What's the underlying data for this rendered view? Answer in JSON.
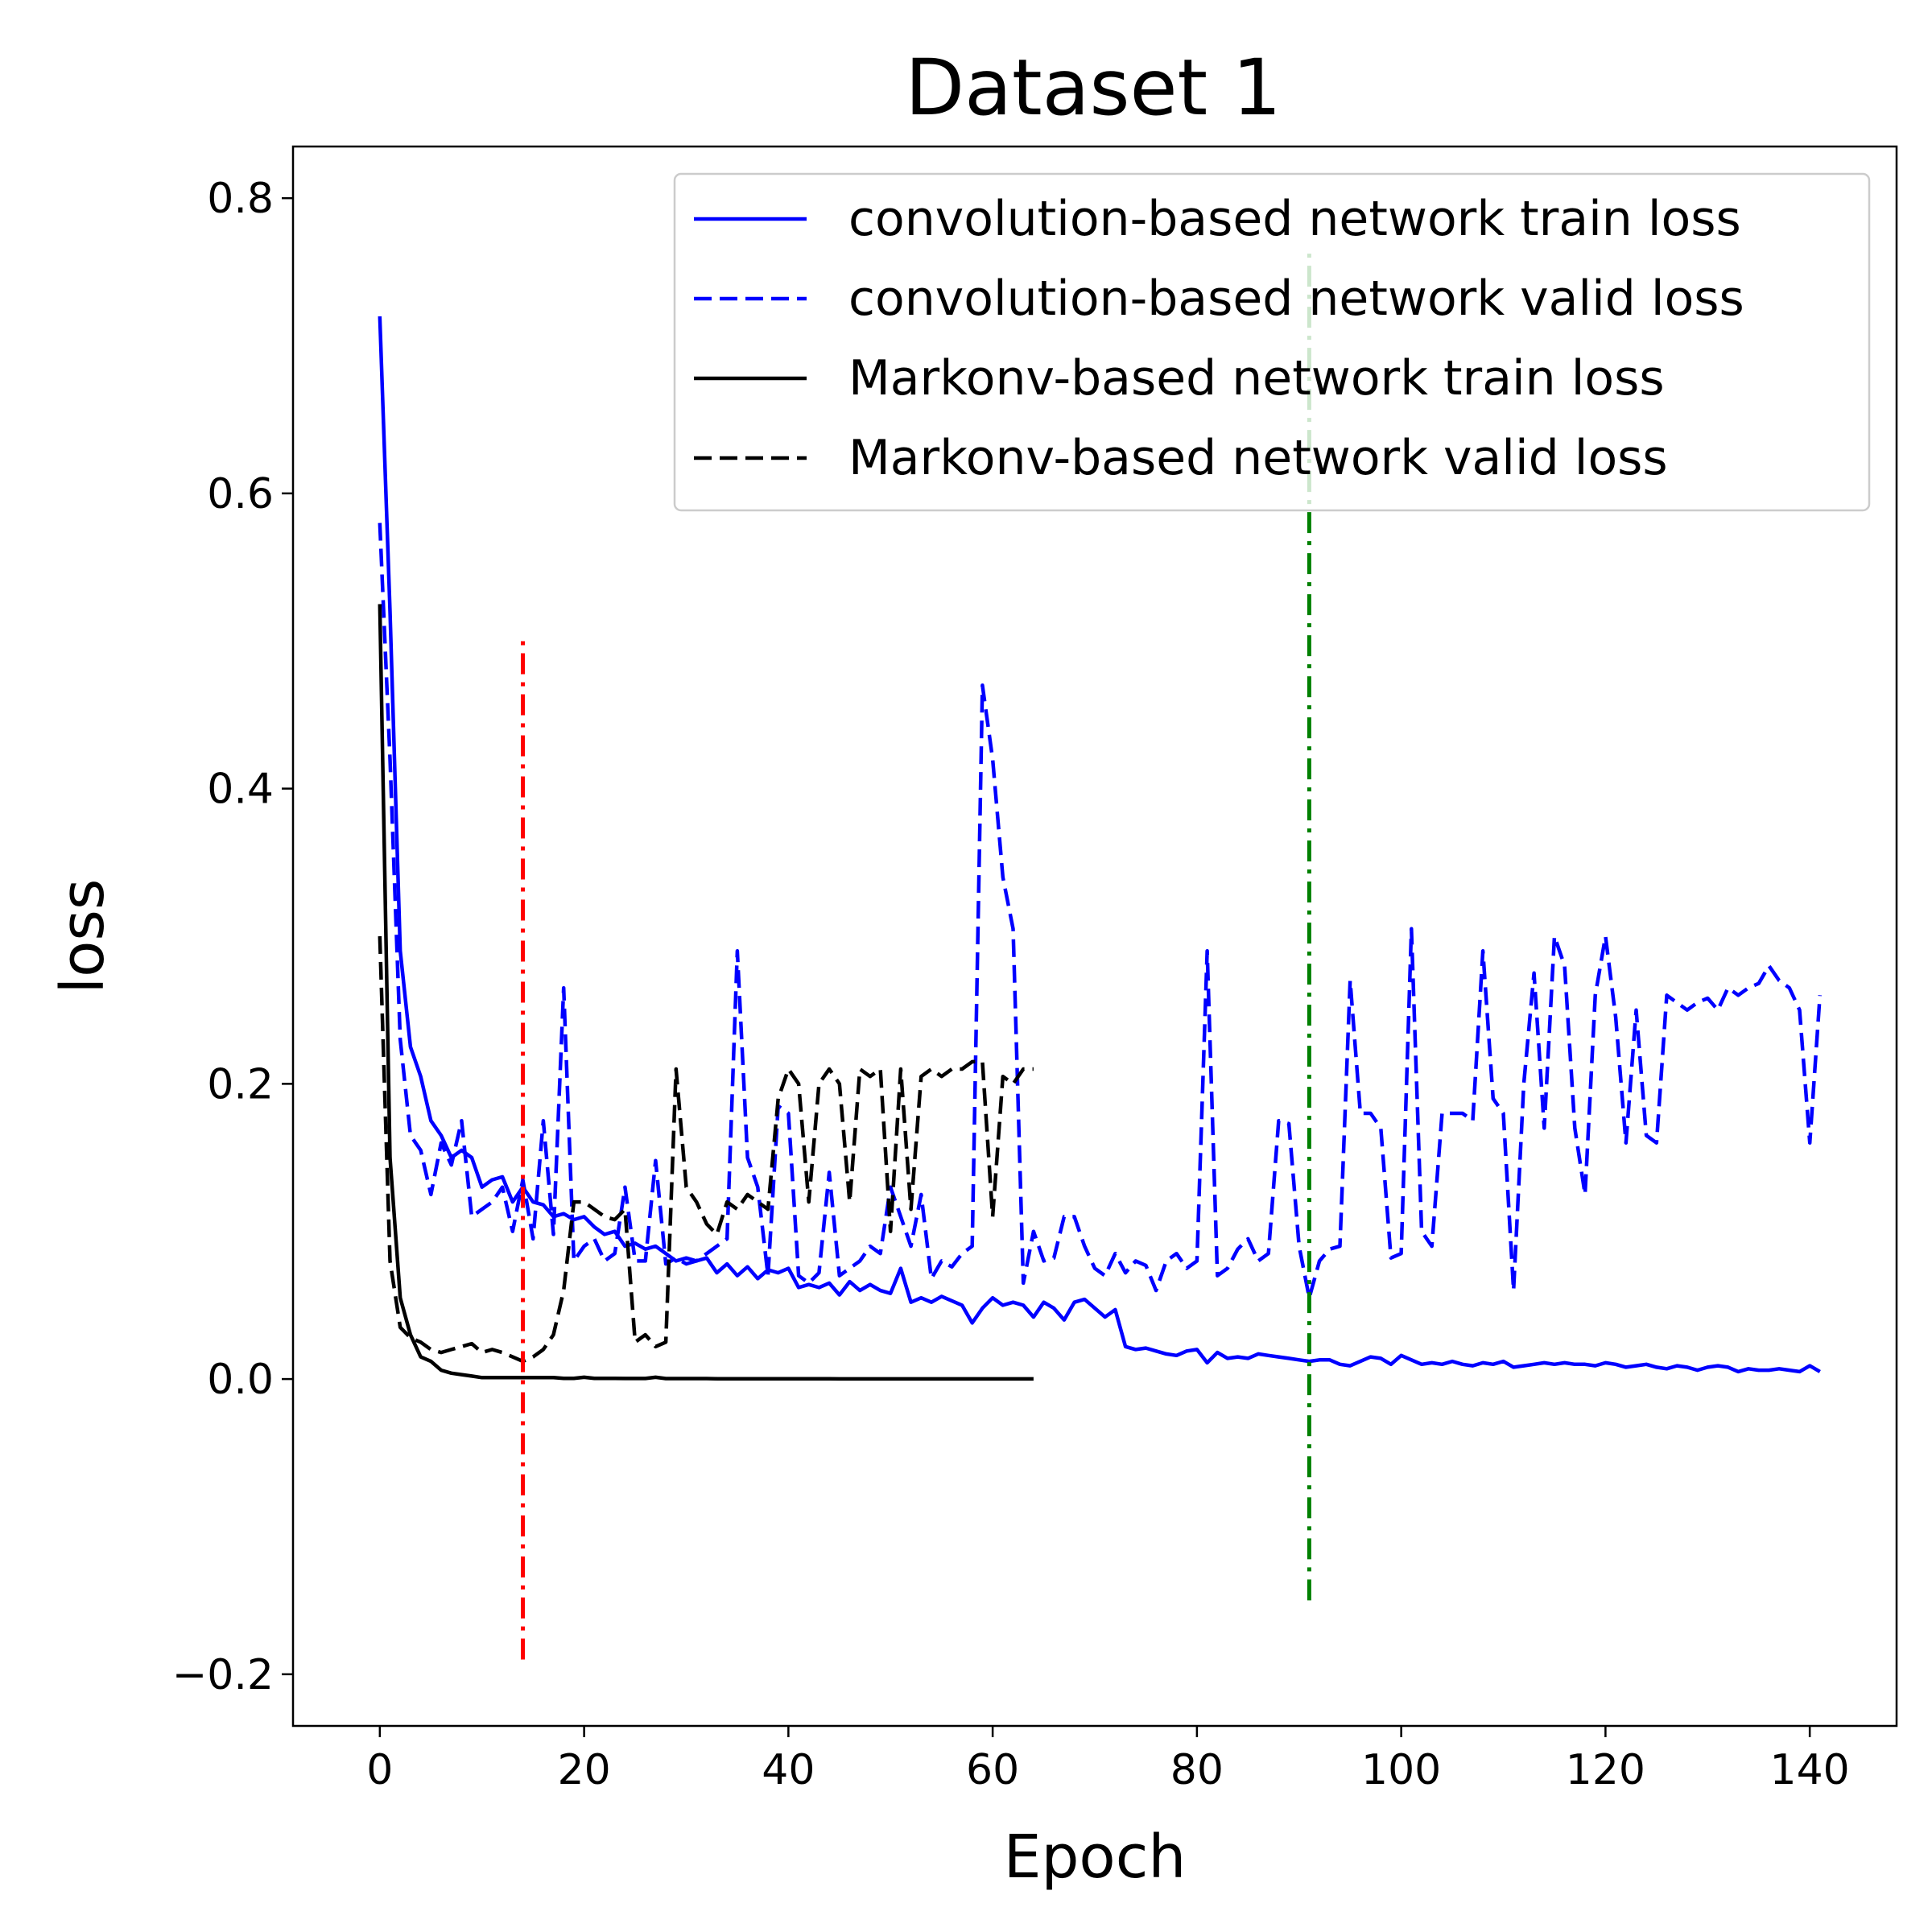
{
  "chart_data": {
    "type": "line",
    "title": "Dataset 1",
    "xlabel": "Epoch",
    "ylabel": "loss",
    "xlim": [
      -8.5,
      148.5
    ],
    "ylim": [
      -0.235,
      0.835
    ],
    "xticks": [
      0,
      20,
      40,
      60,
      80,
      100,
      120,
      140
    ],
    "xtick_labels": [
      "0",
      "20",
      "40",
      "60",
      "80",
      "100",
      "120",
      "140"
    ],
    "yticks": [
      -0.2,
      0.0,
      0.2,
      0.4,
      0.6,
      0.8
    ],
    "ytick_labels": [
      "−0.2",
      "0.0",
      "0.2",
      "0.4",
      "0.6",
      "0.8"
    ],
    "grid": false,
    "legend_position": "top-right",
    "series": [
      {
        "name": "convolution-based network train loss",
        "color": "#0000ff",
        "style": "solid",
        "x": [
          0,
          1,
          2,
          3,
          4,
          5,
          6,
          7,
          8,
          9,
          10,
          11,
          12,
          13,
          14,
          15,
          16,
          17,
          18,
          19,
          20,
          21,
          22,
          23,
          24,
          25,
          26,
          27,
          28,
          29,
          30,
          31,
          32,
          33,
          34,
          35,
          36,
          37,
          38,
          39,
          40,
          41,
          42,
          43,
          44,
          45,
          46,
          47,
          48,
          49,
          50,
          51,
          52,
          53,
          54,
          55,
          56,
          57,
          58,
          59,
          60,
          61,
          62,
          63,
          64,
          65,
          66,
          67,
          68,
          69,
          70,
          71,
          72,
          73,
          74,
          75,
          76,
          77,
          78,
          79,
          80,
          81,
          82,
          83,
          84,
          85,
          86,
          87,
          88,
          89,
          90,
          91,
          92,
          93,
          94,
          95,
          96,
          97,
          98,
          99,
          100,
          101,
          102,
          103,
          104,
          105,
          106,
          107,
          108,
          109,
          110,
          111,
          112,
          113,
          114,
          115,
          116,
          117,
          118,
          119,
          120,
          121,
          122,
          123,
          124,
          125,
          126,
          127,
          128,
          129,
          130,
          131,
          132,
          133,
          134,
          135,
          136,
          137,
          138,
          139,
          140,
          141
        ],
        "values": [
          0.72,
          0.52,
          0.29,
          0.225,
          0.205,
          0.175,
          0.165,
          0.15,
          0.155,
          0.15,
          0.13,
          0.135,
          0.137,
          0.12,
          0.13,
          0.12,
          0.118,
          0.11,
          0.112,
          0.108,
          0.11,
          0.103,
          0.098,
          0.1,
          0.09,
          0.092,
          0.088,
          0.09,
          0.085,
          0.08,
          0.082,
          0.08,
          0.082,
          0.072,
          0.078,
          0.07,
          0.076,
          0.068,
          0.074,
          0.072,
          0.075,
          0.062,
          0.064,
          0.062,
          0.065,
          0.057,
          0.066,
          0.06,
          0.064,
          0.06,
          0.058,
          0.075,
          0.052,
          0.055,
          0.052,
          0.056,
          0.053,
          0.05,
          0.038,
          0.048,
          0.055,
          0.05,
          0.052,
          0.05,
          0.042,
          0.052,
          0.048,
          0.04,
          0.052,
          0.054,
          0.048,
          0.042,
          0.047,
          0.022,
          0.02,
          0.021,
          0.019,
          0.017,
          0.016,
          0.019,
          0.02,
          0.011,
          0.018,
          0.014,
          0.015,
          0.014,
          0.017,
          0.016,
          0.015,
          0.014,
          0.013,
          0.012,
          0.013,
          0.013,
          0.01,
          0.009,
          0.012,
          0.015,
          0.014,
          0.01,
          0.016,
          0.013,
          0.01,
          0.011,
          0.01,
          0.012,
          0.01,
          0.009,
          0.011,
          0.01,
          0.012,
          0.008,
          0.009,
          0.01,
          0.011,
          0.01,
          0.011,
          0.01,
          0.01,
          0.009,
          0.011,
          0.01,
          0.008,
          0.009,
          0.01,
          0.008,
          0.007,
          0.009,
          0.008,
          0.006,
          0.008,
          0.009,
          0.008,
          0.005,
          0.007,
          0.006,
          0.006,
          0.007,
          0.006,
          0.005,
          0.009,
          0.005
        ]
      },
      {
        "name": "convolution-based network valid loss",
        "color": "#0000ff",
        "style": "dashed",
        "x": [
          0,
          1,
          2,
          3,
          4,
          5,
          6,
          7,
          8,
          9,
          10,
          11,
          12,
          13,
          14,
          15,
          16,
          17,
          18,
          19,
          20,
          21,
          22,
          23,
          24,
          25,
          26,
          27,
          28,
          29,
          30,
          31,
          32,
          33,
          34,
          35,
          36,
          37,
          38,
          39,
          40,
          41,
          42,
          43,
          44,
          45,
          46,
          47,
          48,
          49,
          50,
          51,
          52,
          53,
          54,
          55,
          56,
          57,
          58,
          59,
          60,
          61,
          62,
          63,
          64,
          65,
          66,
          67,
          68,
          69,
          70,
          71,
          72,
          73,
          74,
          75,
          76,
          77,
          78,
          79,
          80,
          81,
          82,
          83,
          84,
          85,
          86,
          87,
          88,
          89,
          90,
          91,
          92,
          93,
          94,
          95,
          96,
          97,
          98,
          99,
          100,
          101,
          102,
          103,
          104,
          105,
          106,
          107,
          108,
          109,
          110,
          111,
          112,
          113,
          114,
          115,
          116,
          117,
          118,
          119,
          120,
          121,
          122,
          123,
          124,
          125,
          126,
          127,
          128,
          129,
          130,
          131,
          132,
          133,
          134,
          135,
          136,
          137,
          138,
          139,
          140,
          141
        ],
        "values": [
          0.58,
          0.42,
          0.23,
          0.165,
          0.155,
          0.125,
          0.16,
          0.145,
          0.175,
          0.11,
          0.115,
          0.12,
          0.13,
          0.1,
          0.135,
          0.095,
          0.175,
          0.098,
          0.265,
          0.08,
          0.09,
          0.095,
          0.08,
          0.085,
          0.13,
          0.08,
          0.08,
          0.148,
          0.078,
          0.082,
          0.078,
          0.08,
          0.085,
          0.09,
          0.095,
          0.29,
          0.15,
          0.13,
          0.07,
          0.185,
          0.18,
          0.07,
          0.065,
          0.072,
          0.14,
          0.07,
          0.075,
          0.08,
          0.09,
          0.085,
          0.13,
          0.11,
          0.09,
          0.125,
          0.068,
          0.08,
          0.076,
          0.085,
          0.09,
          0.47,
          0.42,
          0.34,
          0.305,
          0.065,
          0.1,
          0.08,
          0.082,
          0.11,
          0.11,
          0.09,
          0.075,
          0.07,
          0.085,
          0.072,
          0.08,
          0.077,
          0.06,
          0.08,
          0.085,
          0.075,
          0.08,
          0.29,
          0.07,
          0.075,
          0.088,
          0.095,
          0.08,
          0.085,
          0.175,
          0.173,
          0.09,
          0.055,
          0.08,
          0.088,
          0.09,
          0.27,
          0.18,
          0.18,
          0.17,
          0.082,
          0.085,
          0.305,
          0.1,
          0.09,
          0.18,
          0.18,
          0.18,
          0.175,
          0.29,
          0.19,
          0.18,
          0.06,
          0.2,
          0.275,
          0.17,
          0.3,
          0.28,
          0.17,
          0.125,
          0.26,
          0.3,
          0.245,
          0.16,
          0.25,
          0.165,
          0.16,
          0.26,
          0.255,
          0.25,
          0.255,
          0.258,
          0.25,
          0.265,
          0.26,
          0.265,
          0.268,
          0.28,
          0.27,
          0.265,
          0.25,
          0.16,
          0.26
        ]
      },
      {
        "name": "Markonv-based network train loss",
        "color": "#000000",
        "style": "solid",
        "x": [
          0,
          1,
          2,
          3,
          4,
          5,
          6,
          7,
          8,
          9,
          10,
          11,
          12,
          13,
          14,
          15,
          16,
          17,
          18,
          19,
          20,
          21,
          22,
          23,
          24,
          25,
          26,
          27,
          28,
          29,
          30,
          31,
          32,
          33,
          34,
          35,
          36,
          37,
          38,
          39,
          40,
          41,
          42,
          43,
          44,
          45,
          46,
          47,
          48,
          49,
          50,
          51,
          52,
          53,
          54,
          55,
          56,
          57,
          58,
          59,
          60,
          61,
          62,
          63,
          64
        ],
        "values": [
          0.525,
          0.15,
          0.055,
          0.03,
          0.015,
          0.012,
          0.006,
          0.004,
          0.003,
          0.002,
          0.001,
          0.001,
          0.001,
          0.001,
          0.001,
          0.001,
          0.001,
          0.001,
          0.0005,
          0.0005,
          0.0012,
          0.0005,
          0.0005,
          0.0005,
          0.0004,
          0.0004,
          0.0004,
          0.0012,
          0.0003,
          0.0003,
          0.0003,
          0.0003,
          0.0003,
          0.0002,
          0.0002,
          0.0002,
          0.0002,
          0.0002,
          0.0002,
          0.0002,
          0.0002,
          0.0002,
          0.0002,
          0.0002,
          0.0002,
          0.0001,
          0.0001,
          0.0001,
          0.0001,
          0.0001,
          0.0001,
          0.0001,
          0.0001,
          0.0001,
          0.0001,
          0.0001,
          0.0001,
          0.0001,
          0.0001,
          0.0001,
          0.0001,
          0.0001,
          0.0001,
          0.0001,
          0.0001
        ]
      },
      {
        "name": "Markonv-based network valid loss",
        "color": "#000000",
        "style": "dashed",
        "x": [
          0,
          1,
          2,
          3,
          4,
          5,
          6,
          7,
          8,
          9,
          10,
          11,
          12,
          13,
          14,
          15,
          16,
          17,
          18,
          19,
          20,
          21,
          22,
          23,
          24,
          25,
          26,
          27,
          28,
          29,
          30,
          31,
          32,
          33,
          34,
          35,
          36,
          37,
          38,
          39,
          40,
          41,
          42,
          43,
          44,
          45,
          46,
          47,
          48,
          49,
          50,
          51,
          52,
          53,
          54,
          55,
          56,
          57,
          58,
          59,
          60,
          61,
          62,
          63,
          64
        ],
        "values": [
          0.3,
          0.08,
          0.035,
          0.028,
          0.025,
          0.02,
          0.018,
          0.02,
          0.022,
          0.024,
          0.018,
          0.02,
          0.018,
          0.015,
          0.012,
          0.015,
          0.02,
          0.03,
          0.06,
          0.12,
          0.12,
          0.115,
          0.11,
          0.108,
          0.115,
          0.025,
          0.03,
          0.022,
          0.025,
          0.21,
          0.13,
          0.12,
          0.105,
          0.098,
          0.12,
          0.115,
          0.125,
          0.12,
          0.115,
          0.19,
          0.21,
          0.2,
          0.12,
          0.2,
          0.21,
          0.2,
          0.12,
          0.21,
          0.205,
          0.21,
          0.1,
          0.21,
          0.115,
          0.205,
          0.21,
          0.205,
          0.21,
          0.21,
          0.215,
          0.215,
          0.11,
          0.205,
          0.2,
          0.21,
          0.21
        ]
      },
      {
        "name": "",
        "color": "#ff0000",
        "style": "dashdot",
        "x": [
          14,
          14
        ],
        "values": [
          -0.19,
          0.505
        ]
      },
      {
        "name": "",
        "color": "#008000",
        "style": "dashdot",
        "x": [
          91,
          91
        ],
        "values": [
          -0.15,
          0.765
        ]
      }
    ]
  }
}
